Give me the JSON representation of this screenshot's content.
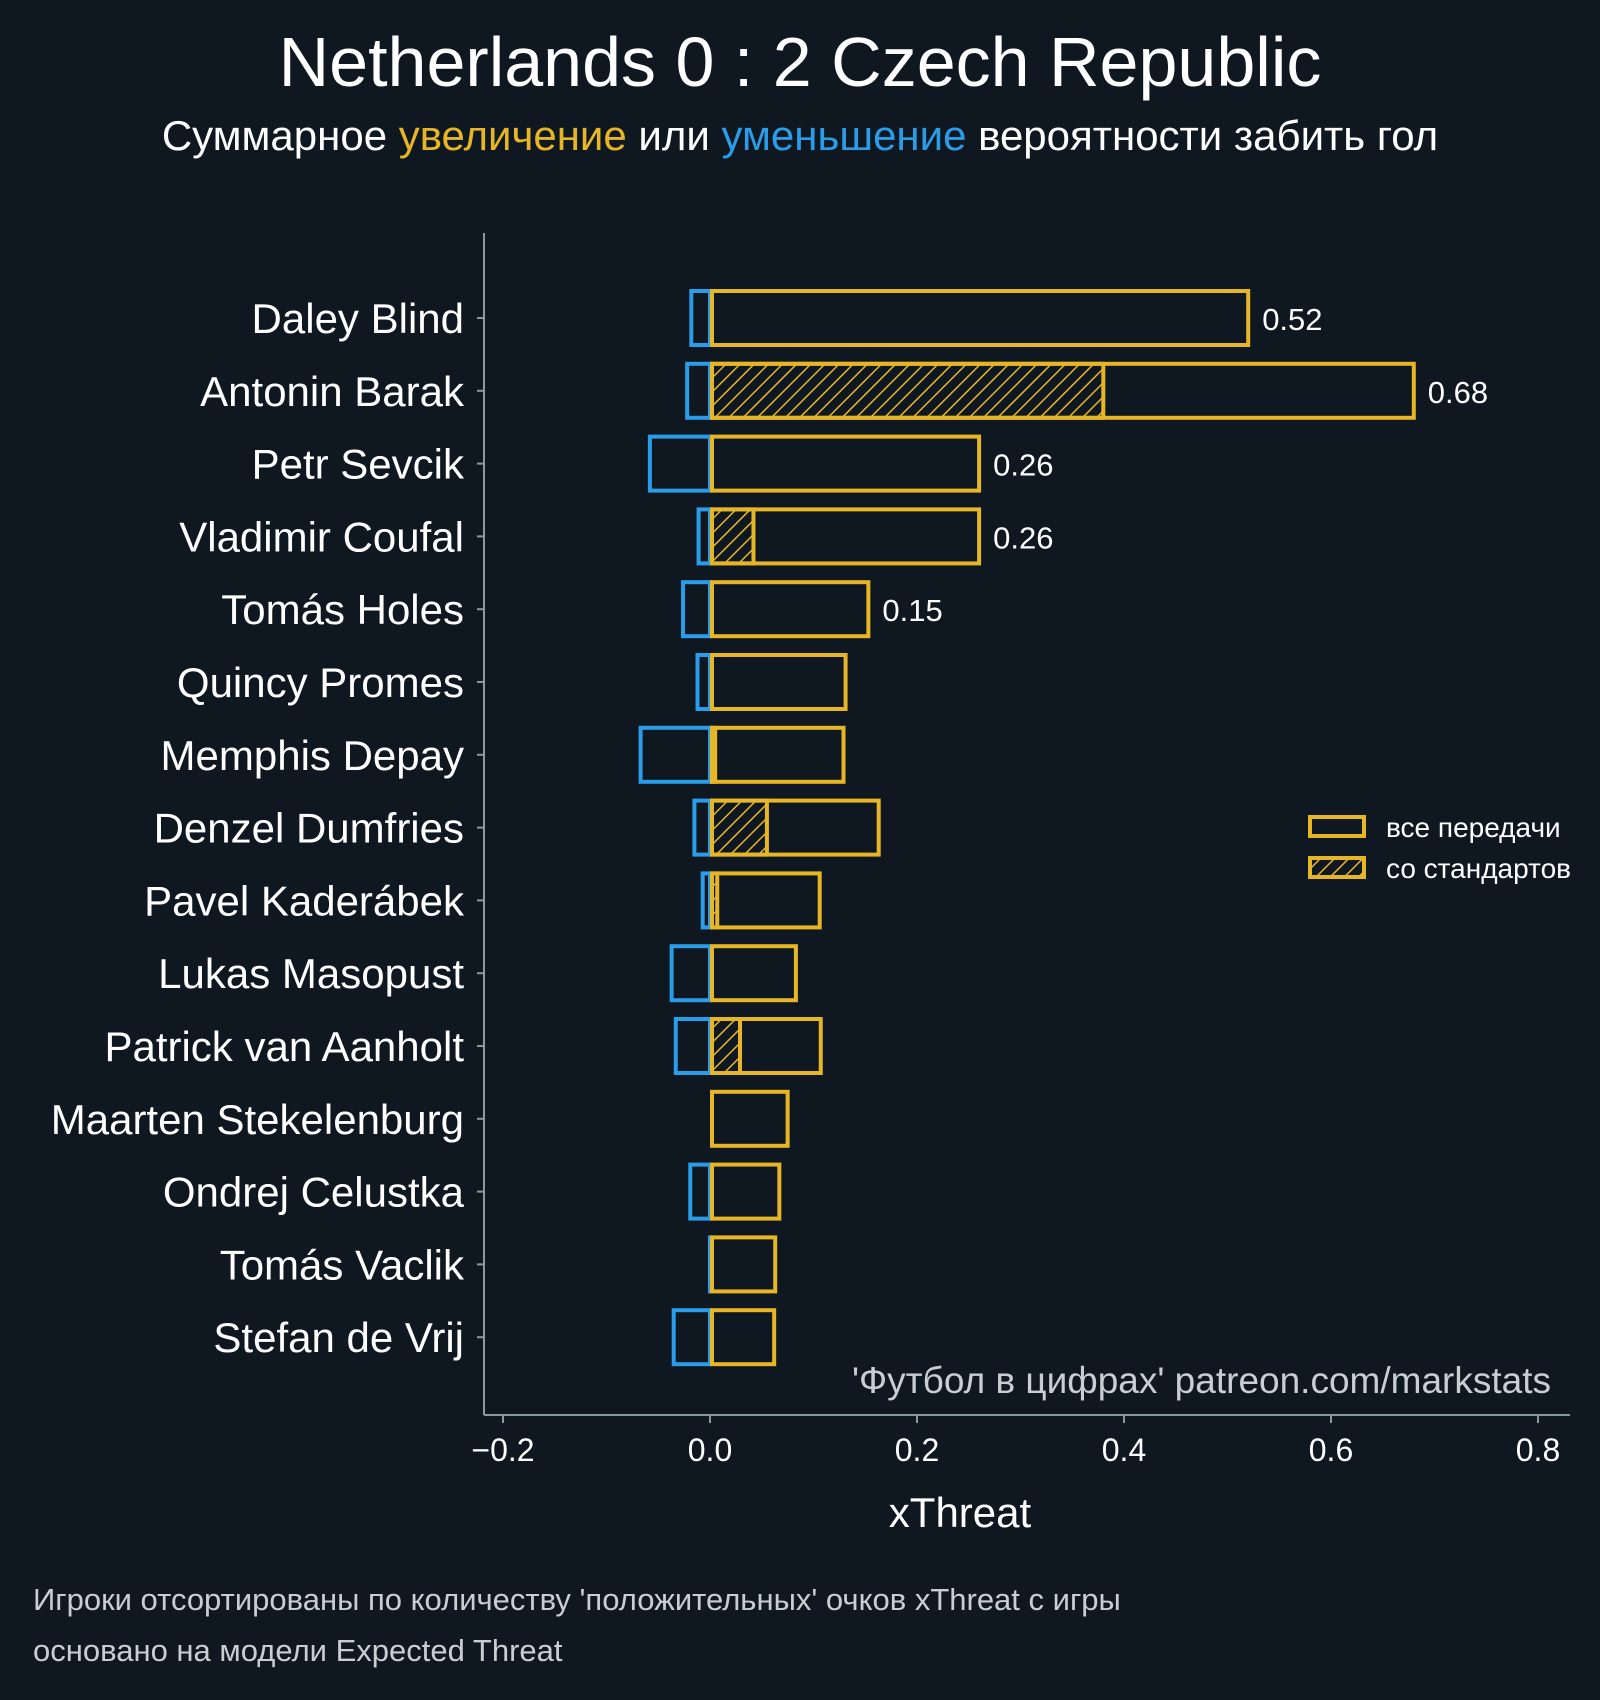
{
  "title": "Netherlands 0 : 2 Czech Republic",
  "subtitle": {
    "part1": "Суммарное ",
    "increase": "увеличение",
    "part2": " или ",
    "decrease": "уменьшение",
    "part3": " вероятности забить гол"
  },
  "colors": {
    "background": "#0f1820",
    "positive": "#e6b626",
    "negative": "#2a9ce8",
    "axis": "#8a9aa3",
    "text": "#ffffff"
  },
  "footer": {
    "line1": "Игроки отсортированы по количеству 'положительных' очков xThreat с игры",
    "line2": "основано на модели Expected Threat"
  },
  "chart_data": {
    "type": "bar",
    "orientation": "horizontal",
    "xlabel": "xThreat",
    "xlim": [
      -0.22,
      0.83
    ],
    "xticks": [
      -0.2,
      0.0,
      0.2,
      0.4,
      0.6,
      0.8
    ],
    "xtick_labels": [
      "−0.2",
      "0.0",
      "0.2",
      "0.4",
      "0.6",
      "0.8"
    ],
    "watermark": "'Футбол в цифрах' patreon.com/markstats",
    "legend": {
      "position": "right",
      "entries": [
        "все передачи",
        "со стандартов"
      ]
    },
    "categories": [
      "Daley Blind",
      "Antonin Barak",
      "Petr Sevcik",
      "Vladimir Coufal",
      "Tomás Holes",
      "Quincy Promes",
      "Memphis Depay",
      "Denzel Dumfries",
      "Pavel Kaderábek",
      "Lukas Masopust",
      "Patrick van Aanholt",
      "Maarten Stekelenburg",
      "Ondrej Celustka",
      "Tomás Vaclik",
      "Stefan de Vrij"
    ],
    "series": [
      {
        "name": "все передачи (positive)",
        "values": [
          0.52,
          0.68,
          0.26,
          0.26,
          0.153,
          0.131,
          0.129,
          0.163,
          0.106,
          0.083,
          0.107,
          0.075,
          0.067,
          0.063,
          0.062
        ]
      },
      {
        "name": "со стандартов",
        "values": [
          0,
          0.38,
          0,
          0.042,
          0,
          0,
          0.005,
          0.055,
          0.007,
          0,
          0.029,
          0,
          0,
          0,
          0
        ]
      },
      {
        "name": "negative",
        "values": [
          -0.02,
          -0.024,
          -0.06,
          -0.013,
          -0.028,
          -0.014,
          -0.069,
          -0.017,
          -0.009,
          -0.039,
          -0.035,
          0,
          -0.021,
          -0.002,
          -0.037
        ]
      }
    ],
    "data_labels": [
      "0.52",
      "0.68",
      "0.26",
      "0.26",
      "0.15",
      "",
      "",
      "",
      "",
      "",
      "",
      "",
      "",
      "",
      ""
    ]
  }
}
